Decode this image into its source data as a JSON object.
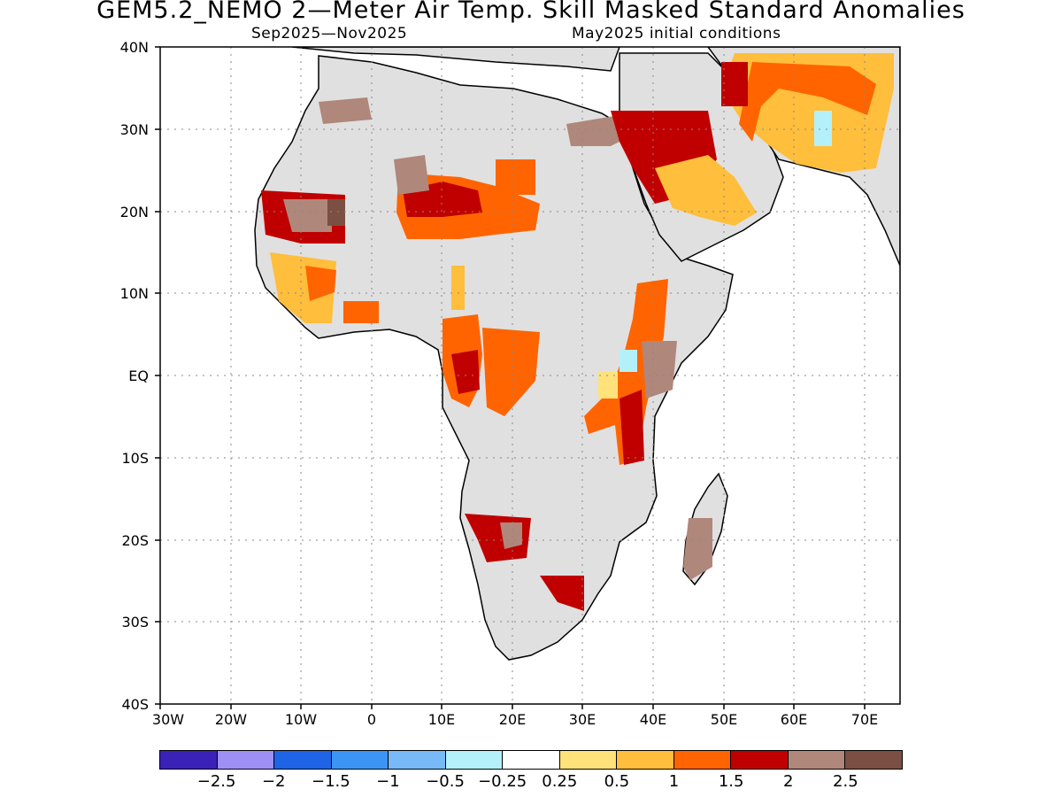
{
  "header": {
    "title": "GEM5.2_NEMO 2—Meter Air Temp. Skill Masked Standard Anomalies",
    "season": "Sep2025—Nov2025",
    "init": "May2025 initial conditions"
  },
  "map": {
    "lon_range": [
      -30,
      75
    ],
    "lat_range": [
      -40,
      40
    ],
    "grid": true,
    "y_ticks": [
      "40N",
      "30N",
      "20N",
      "10N",
      "EQ",
      "10S",
      "20S",
      "30S",
      "40S"
    ],
    "x_ticks": [
      "30W",
      "20W",
      "10W",
      "0",
      "10E",
      "20E",
      "30E",
      "40E",
      "50E",
      "60E",
      "70E"
    ],
    "land_color": "#e0e0e0"
  },
  "legend": {
    "colors": [
      "#3a21b8",
      "#9e8ff5",
      "#1f64e6",
      "#3c95f5",
      "#78b9f7",
      "#b4f0fa",
      "#ffffff",
      "#ffe27a",
      "#ffbe3b",
      "#ff6400",
      "#c00000",
      "#b0877b",
      "#7b4f44"
    ],
    "labels": [
      "−2.5",
      "−2",
      "−1.5",
      "−1",
      "−0.5",
      "−0.25",
      "0.25",
      "0.5",
      "1",
      "1.5",
      "2",
      "2.5"
    ]
  }
}
